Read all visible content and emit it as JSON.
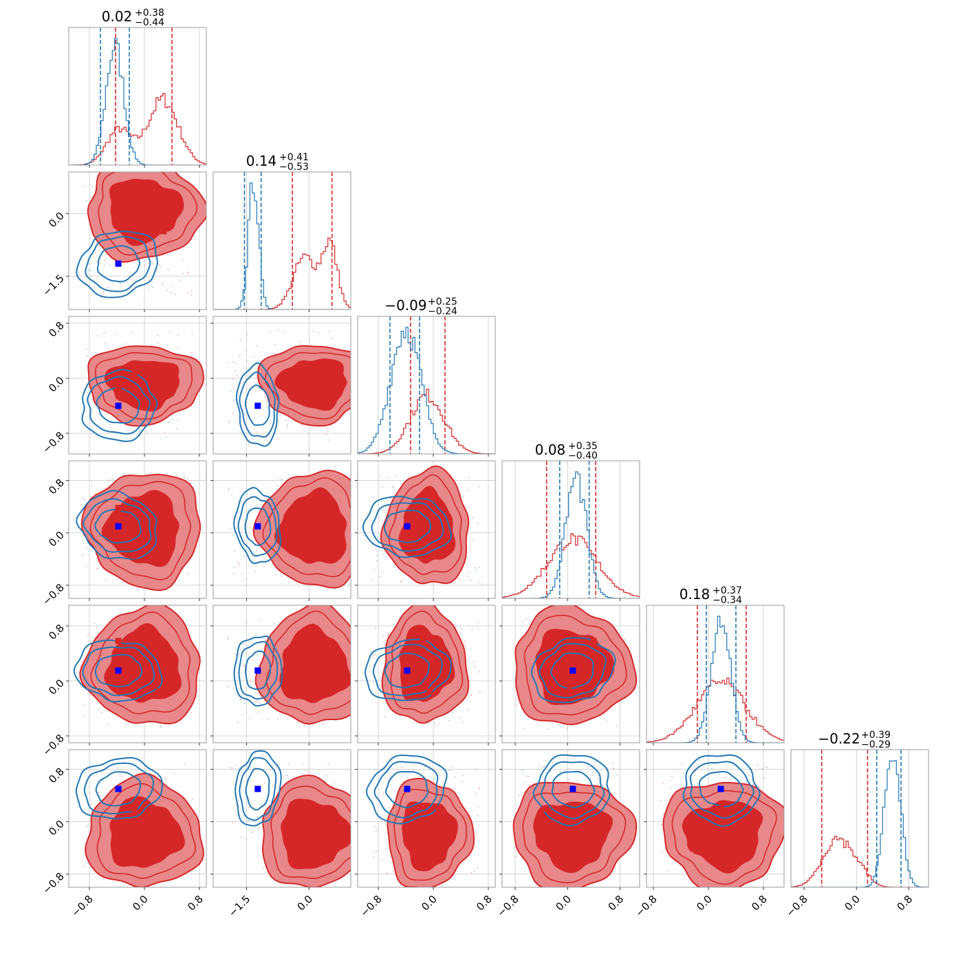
{
  "colors": {
    "red": "#d62728",
    "red_light": "#e8888a",
    "red_mid": "#e04d4f",
    "blue": "#1f77b4",
    "blue_marker": "#0000ff",
    "grid": "#c8c8c8",
    "frame": "#9a9a9a"
  },
  "chart_data": {
    "type": "corner",
    "n_params": 6,
    "series": [
      {
        "name": "",
        "color": "#d62728",
        "style": "filled-contours"
      },
      {
        "name": "",
        "color": "#1f77b4",
        "style": "line-contours"
      }
    ],
    "titles": [
      {
        "central": "0.02",
        "plus": "+0.38",
        "minus": "−0.44"
      },
      {
        "central": "0.14",
        "plus": "+0.41",
        "minus": "−0.53"
      },
      {
        "central": "−0.09",
        "plus": "+0.25",
        "minus": "−0.24"
      },
      {
        "central": "0.08",
        "plus": "+0.35",
        "minus": "−0.40"
      },
      {
        "central": "0.18",
        "plus": "+0.37",
        "minus": "−0.34"
      },
      {
        "central": "−0.22",
        "plus": "+0.39",
        "minus": "−0.29"
      }
    ],
    "ranges": [
      [
        -1.1,
        0.9
      ],
      [
        -2.3,
        1.0
      ],
      [
        -1.1,
        0.9
      ],
      [
        -1.0,
        1.1
      ],
      [
        -0.9,
        1.1
      ],
      [
        -1.0,
        1.1
      ]
    ],
    "ticks": [
      {
        "values": [
          -0.8,
          0.0,
          0.8
        ],
        "labels": [
          "−0.8",
          "0.0",
          "0.8"
        ]
      },
      {
        "values": [
          -1.5,
          0.0
        ],
        "labels": [
          "−1.5",
          "0.0"
        ]
      },
      {
        "values": [
          -0.8,
          0.0,
          0.8
        ],
        "labels": [
          "−0.8",
          "0.0",
          "0.8"
        ]
      },
      {
        "values": [
          -0.8,
          0.0,
          0.8
        ],
        "labels": [
          "−0.8",
          "0.0",
          "0.8"
        ]
      },
      {
        "values": [
          -0.8,
          0.0,
          0.8
        ],
        "labels": [
          "−0.8",
          "0.0",
          "0.8"
        ]
      },
      {
        "values": [
          -0.8,
          0.0,
          0.8
        ],
        "labels": [
          "−0.8",
          "0.0",
          "0.8"
        ]
      }
    ],
    "quantile_lines": {
      "red": [
        [
          -0.42,
          0.4
        ],
        [
          -0.4,
          0.55
        ],
        [
          -0.33,
          0.17
        ],
        [
          -0.32,
          0.43
        ],
        [
          -0.16,
          0.55
        ],
        [
          -0.53,
          0.17
        ]
      ],
      "blue": [
        [
          -0.64,
          -0.22
        ],
        [
          -1.55,
          -1.15
        ],
        [
          -0.63,
          -0.2
        ],
        [
          -0.12,
          0.33
        ],
        [
          -0.03,
          0.4
        ],
        [
          0.31,
          0.68
        ]
      ]
    },
    "marginals": {
      "red": [
        {
          "mu": -0.37,
          "sd": 0.18,
          "w": 0.35,
          "mu2": 0.27,
          "sd2": 0.22,
          "w2": 0.65
        },
        {
          "mu": -0.1,
          "sd": 0.28,
          "w": 0.45,
          "mu2": 0.5,
          "sd2": 0.18,
          "w2": 0.55
        },
        {
          "mu": -0.09,
          "sd": 0.25,
          "w": 1.0
        },
        {
          "mu": 0.08,
          "sd": 0.38,
          "w": 1.0
        },
        {
          "mu": 0.18,
          "sd": 0.36,
          "w": 1.0
        },
        {
          "mu": -0.3,
          "sd": 0.22,
          "w": 0.8,
          "mu2": 0.05,
          "sd2": 0.15,
          "w2": 0.2
        }
      ],
      "blue": [
        {
          "mu": -0.43,
          "sd": 0.13,
          "w": 1.0
        },
        {
          "mu": -1.33,
          "sd": 0.12,
          "w": 1.0
        },
        {
          "mu": -0.4,
          "sd": 0.22,
          "w": 1.0
        },
        {
          "mu": 0.13,
          "sd": 0.16,
          "w": 1.0
        },
        {
          "mu": 0.18,
          "sd": 0.14,
          "w": 1.0
        },
        {
          "mu": 0.55,
          "sd": 0.12,
          "w": 1.0
        }
      ]
    },
    "red_markers": [
      [
        -0.38,
        0.4
      ],
      [
        -0.15,
        0.45
      ],
      [
        0.22,
        -0.07
      ],
      [
        0.28,
        -0.42
      ],
      [
        -0.38,
        0.3
      ],
      [
        -0.15,
        0.3
      ],
      [
        0.22,
        0.3
      ],
      [
        -0.38,
        0.3
      ],
      [
        -0.15,
        0.3
      ],
      [
        0.22,
        0.3
      ],
      [
        0.3,
        0.3
      ],
      [
        -0.38,
        0.3
      ],
      [
        -0.15,
        0.3
      ],
      [
        0.22,
        0.3
      ]
    ],
    "panels": [
      {
        "row": 1,
        "col": 0,
        "red": [
          [
            -0.38,
            0.4
          ],
          [
            -0.15,
            0.45
          ],
          [
            0.22,
            -0.07
          ],
          [
            0.28,
            -0.42
          ]
        ],
        "blue": [
          -0.38,
          -1.2
        ]
      },
      {
        "row": 2,
        "col": 0,
        "red": [
          [
            -0.15,
            0.05
          ],
          [
            0.22,
            -0.03
          ],
          [
            -0.38,
            -0.15
          ],
          [
            0.28,
            -0.18
          ]
        ],
        "blue": [
          -0.38,
          -0.4
        ]
      },
      {
        "row": 2,
        "col": 1,
        "red": [
          [
            -0.05,
            -0.03
          ],
          [
            0.5,
            0.07
          ],
          [
            -0.45,
            -0.18
          ],
          [
            0.45,
            -0.15
          ]
        ],
        "blue": [
          -1.23,
          -0.4
        ]
      },
      {
        "row": 2,
        "col": 2,
        "red": [],
        "blue": null
      },
      {
        "row": 3,
        "col": 0,
        "red": [
          [
            -0.38,
            0.38
          ],
          [
            0.28,
            0.18
          ],
          [
            0.22,
            0.03
          ],
          [
            -0.15,
            -0.35
          ]
        ],
        "blue": [
          -0.38,
          0.1
        ]
      },
      {
        "row": 3,
        "col": 1,
        "red": [
          [
            0.45,
            0.38
          ],
          [
            -0.45,
            0.18
          ],
          [
            -0.05,
            0.03
          ],
          [
            0.5,
            -0.35
          ]
        ],
        "blue": [
          -1.23,
          0.1
        ]
      },
      {
        "row": 3,
        "col": 2,
        "red": [
          [
            -0.15,
            0.38
          ],
          [
            -0.18,
            0.18
          ],
          [
            0.08,
            -0.35
          ]
        ],
        "blue": [
          -0.38,
          0.1
        ]
      },
      {
        "row": 4,
        "col": 0,
        "red": [
          [
            -0.38,
            0.58
          ],
          [
            0.28,
            0.25
          ],
          [
            -0.15,
            0.15
          ],
          [
            0.22,
            -0.15
          ]
        ],
        "blue": [
          -0.38,
          0.15
        ]
      },
      {
        "row": 4,
        "col": 1,
        "red": [
          [
            0.45,
            0.58
          ],
          [
            -0.45,
            0.25
          ],
          [
            0.5,
            0.15
          ],
          [
            -0.05,
            -0.15
          ]
        ],
        "blue": [
          -1.23,
          0.15
        ]
      },
      {
        "row": 4,
        "col": 2,
        "red": [
          [
            -0.15,
            0.58
          ],
          [
            -0.18,
            0.25
          ],
          [
            -0.05,
            -0.15
          ]
        ],
        "blue": [
          -0.38,
          0.15
        ]
      },
      {
        "row": 4,
        "col": 3,
        "red": [
          [
            0.4,
            0.58
          ],
          [
            0.18,
            0.25
          ],
          [
            -0.35,
            0.15
          ],
          [
            0.03,
            -0.15
          ]
        ],
        "blue": [
          0.08,
          0.15
        ]
      },
      {
        "row": 5,
        "col": 0,
        "red": [
          [
            -0.15,
            0.2
          ],
          [
            -0.38,
            -0.25
          ],
          [
            0.28,
            -0.25
          ],
          [
            0.22,
            -0.45
          ]
        ],
        "blue": [
          -0.38,
          0.5
        ]
      },
      {
        "row": 5,
        "col": 1,
        "red": [
          [
            0.5,
            0.2
          ],
          [
            -0.45,
            -0.25
          ],
          [
            0.45,
            -0.25
          ],
          [
            -0.05,
            -0.45
          ]
        ],
        "blue": [
          -1.23,
          0.5
        ]
      },
      {
        "row": 5,
        "col": 2,
        "red": [
          [
            0.08,
            0.2
          ],
          [
            -0.18,
            -0.25
          ],
          [
            -0.15,
            -0.25
          ],
          [
            -0.05,
            -0.45
          ]
        ],
        "blue": [
          -0.38,
          0.5
        ]
      },
      {
        "row": 5,
        "col": 3,
        "red": [
          [
            -0.35,
            0.2
          ],
          [
            0.18,
            -0.25
          ],
          [
            0.4,
            -0.25
          ],
          [
            0.03,
            -0.45
          ]
        ],
        "blue": [
          0.08,
          0.5
        ]
      },
      {
        "row": 5,
        "col": 4,
        "red": [
          [
            0.18,
            0.2
          ],
          [
            0.3,
            -0.25
          ],
          [
            0.58,
            -0.25
          ],
          [
            -0.16,
            -0.45
          ]
        ],
        "blue": [
          0.18,
          0.5
        ]
      }
    ],
    "blue_center_2d": [
      [
        -0.38,
        -1.2
      ],
      [
        -0.38,
        -0.4
      ],
      [
        -1.23,
        -0.4
      ],
      [
        -0.38,
        0.1
      ],
      [
        -1.23,
        0.1
      ],
      [
        -0.38,
        0.1
      ],
      [
        -0.38,
        0.15
      ],
      [
        -1.23,
        0.15
      ],
      [
        -0.38,
        0.15
      ],
      [
        0.08,
        0.15
      ],
      [
        -0.38,
        0.5
      ],
      [
        -1.23,
        0.5
      ],
      [
        -0.38,
        0.5
      ],
      [
        0.08,
        0.5
      ],
      [
        0.18,
        0.5
      ]
    ]
  }
}
